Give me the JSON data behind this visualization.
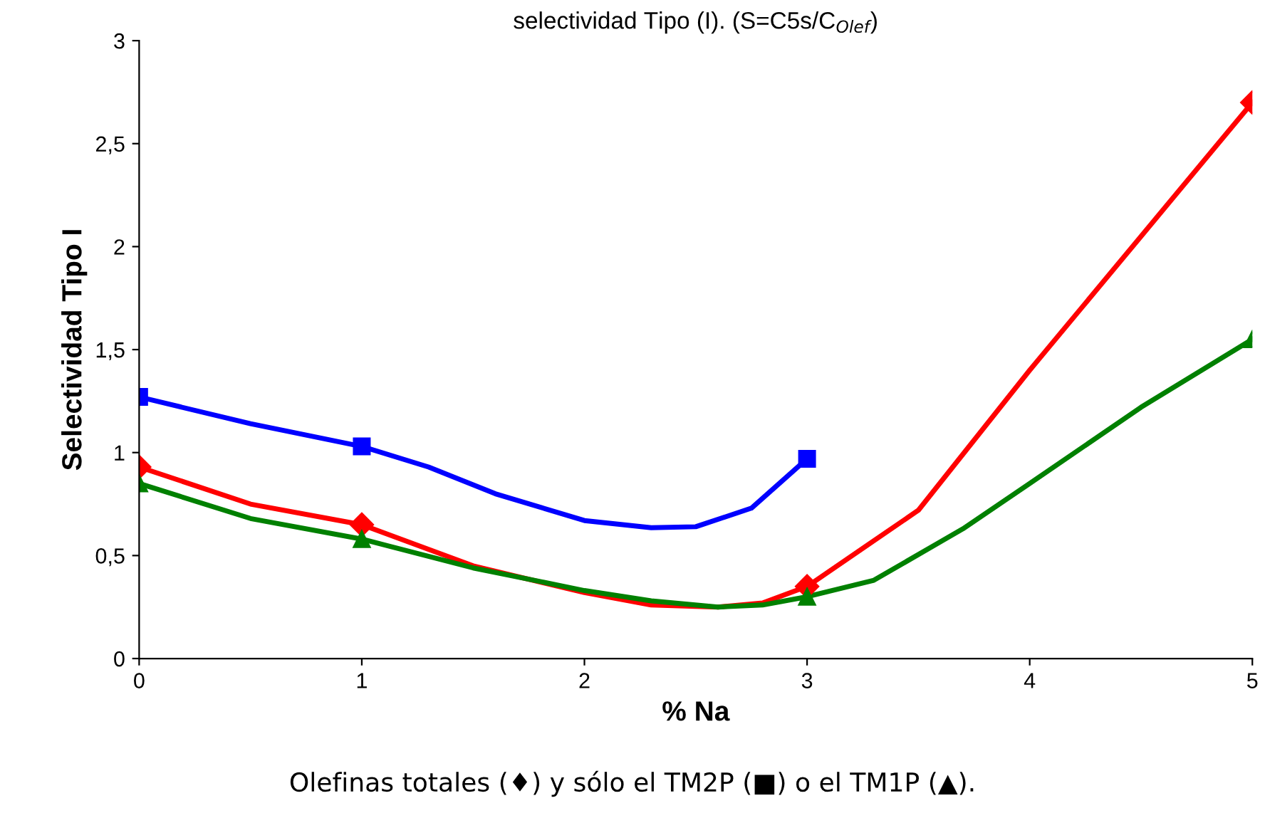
{
  "chart_data": {
    "type": "line",
    "title": "selectividad Tipo (I). (S=C5s/C$_{Olef}$)",
    "xlabel": "% Na",
    "ylabel": "Selectividad Tipo I",
    "annotations": [
      "Olefinas totales (♦) y sólo el TM2P (■) o el TM1P (▲)."
    ],
    "series": [
      {
        "color": "#ff0000",
        "marker": "none",
        "x": [
          0,
          0.5,
          1,
          1.5,
          2,
          2.3,
          2.6,
          2.8,
          3,
          3.5,
          4,
          4.5,
          5
        ],
        "values": [
          0.93,
          0.75,
          0.65,
          0.45,
          0.32,
          0.26,
          0.25,
          0.27,
          0.35,
          0.72,
          1.4,
          2.05,
          2.7
        ]
      },
      {
        "color": "#0000ff",
        "marker": "none",
        "x": [
          0,
          0.5,
          1,
          1.3,
          1.6,
          2,
          2.3,
          2.5,
          2.75,
          3
        ],
        "values": [
          1.27,
          1.14,
          1.03,
          0.93,
          0.8,
          0.67,
          0.635,
          0.64,
          0.73,
          0.97
        ]
      },
      {
        "color": "#008000",
        "marker": "none",
        "x": [
          0,
          0.5,
          1,
          1.5,
          2,
          2.3,
          2.6,
          2.8,
          3,
          3.3,
          3.7,
          4,
          4.5,
          5
        ],
        "values": [
          0.85,
          0.68,
          0.58,
          0.44,
          0.33,
          0.28,
          0.25,
          0.26,
          0.3,
          0.38,
          0.63,
          0.85,
          1.22,
          1.55
        ]
      },
      {
        "type": "scatter",
        "color": "#ff0000",
        "marker": "diamond",
        "x": [
          0,
          1,
          3,
          5
        ],
        "values": [
          0.93,
          0.65,
          0.35,
          2.7
        ]
      },
      {
        "type": "scatter",
        "color": "#0000ff",
        "marker": "square",
        "x": [
          0,
          1,
          3
        ],
        "values": [
          1.27,
          1.03,
          0.97
        ]
      },
      {
        "type": "scatter",
        "color": "#008000",
        "marker": "triangle",
        "x": [
          0,
          1,
          3,
          5
        ],
        "values": [
          0.85,
          0.58,
          0.3,
          1.55
        ]
      }
    ],
    "xlim": [
      0,
      5
    ],
    "xticks": [
      0,
      1,
      2,
      3,
      4,
      5
    ],
    "ylim": [
      0,
      3
    ],
    "yticks": [
      0,
      {
        "value": 0.5,
        "label": "0,5"
      },
      1,
      {
        "value": 1.5,
        "label": "1,5"
      },
      2,
      {
        "value": 2.5,
        "label": "2,5"
      },
      3
    ],
    "grid": false,
    "legend": false,
    "line_style": "solid"
  }
}
